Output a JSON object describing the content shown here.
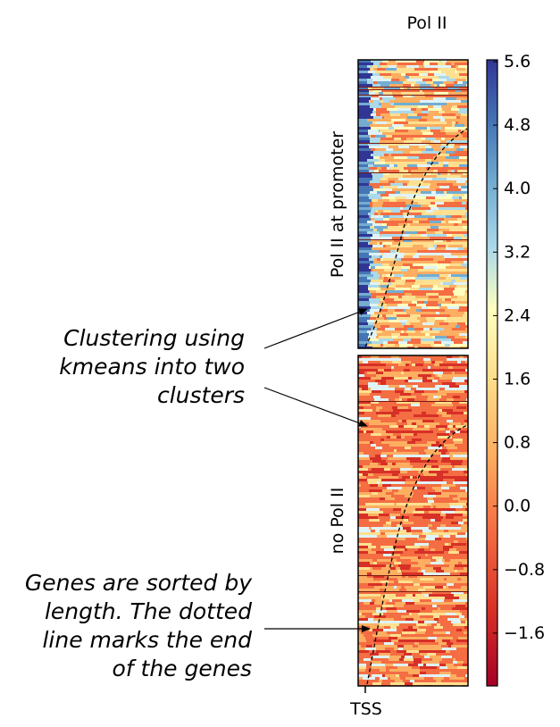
{
  "title": "Pol II",
  "panels": [
    {
      "label": "Pol II at promoter"
    },
    {
      "label": "no Pol II"
    }
  ],
  "xtick": "TSS",
  "colorbar": {
    "ticks": [
      "5.6",
      "4.8",
      "4.0",
      "3.2",
      "2.4",
      "1.6",
      "0.8",
      "0.0",
      "−0.8",
      "−1.6"
    ],
    "colormap": "red-yellow-blue diverging",
    "colors": [
      "#a50026",
      "#f46d43",
      "#fdae61",
      "#fee090",
      "#ffffbf",
      "#abd9e9",
      "#74add1",
      "#4575b4",
      "#313695"
    ]
  },
  "annotations": [
    {
      "lines": [
        "Clustering using",
        "kmeans into two",
        "clusters"
      ]
    },
    {
      "lines": [
        "Genes are sorted by",
        "length. The dotted",
        "line marks the end",
        "of the genes"
      ]
    }
  ]
}
